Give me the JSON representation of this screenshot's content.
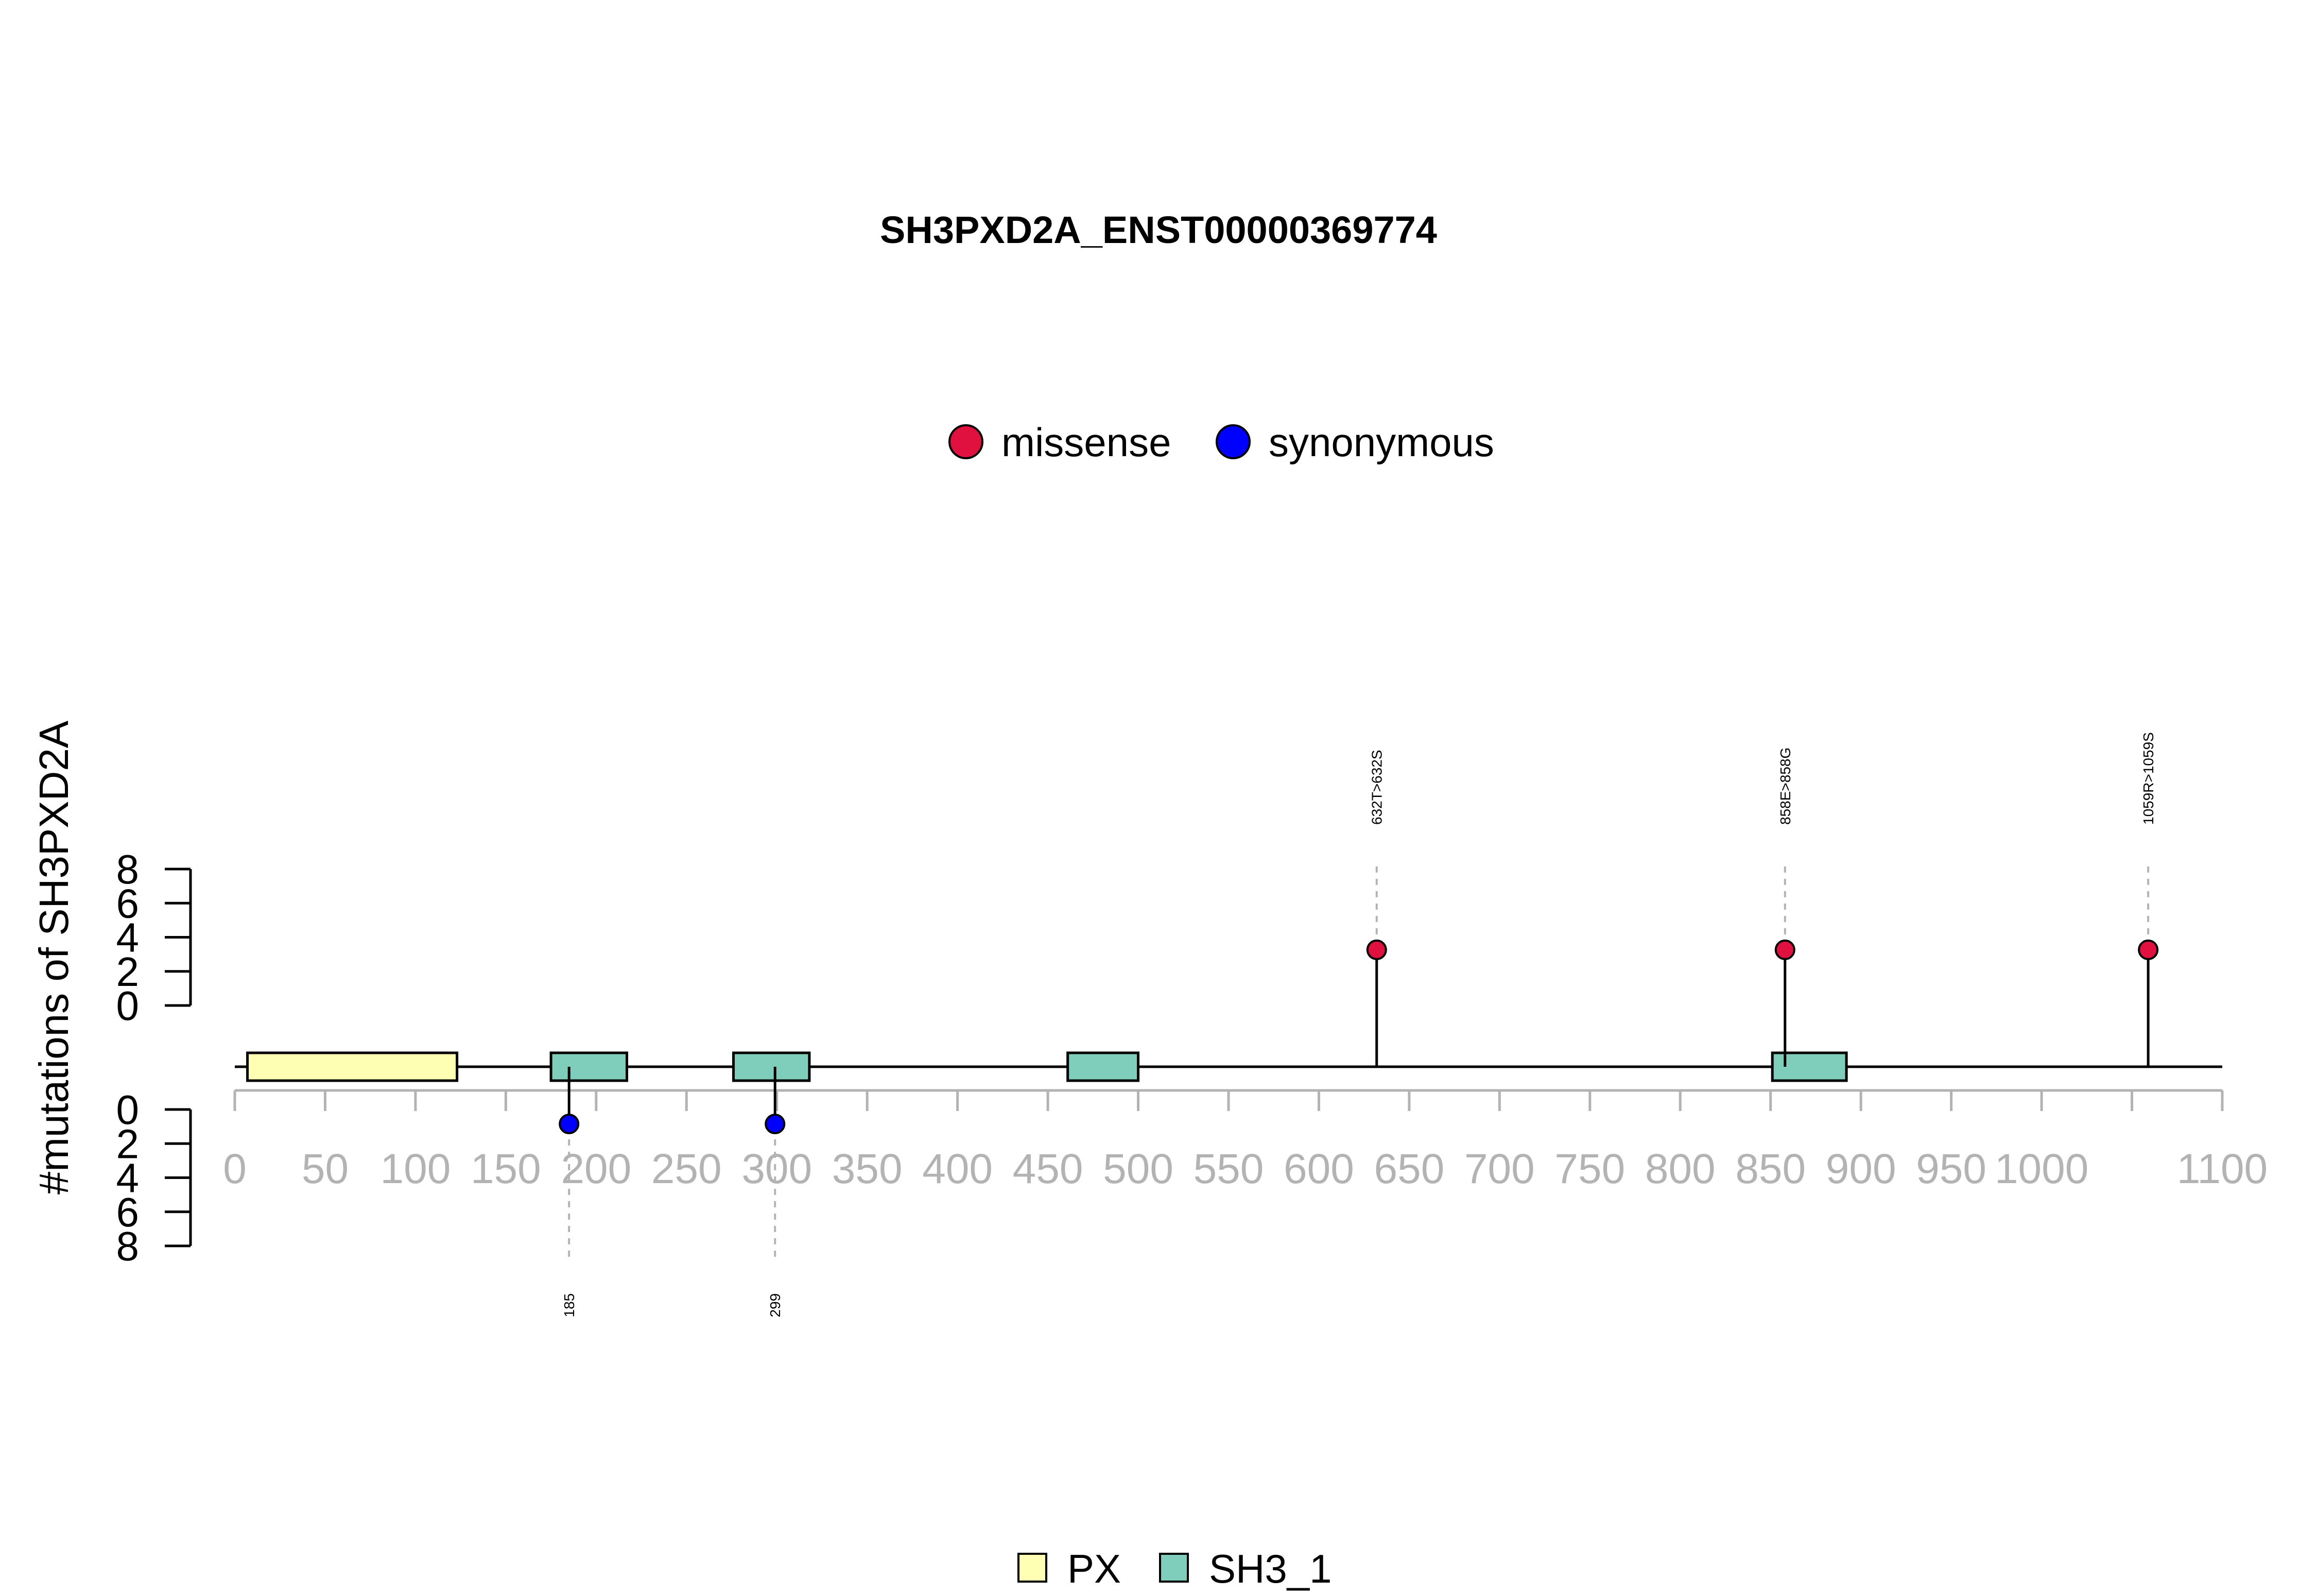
{
  "chart_data": {
    "type": "lollipop",
    "title": "SH3PXD2A_ENST00000369774",
    "ylabel": "#mutations of SH3PXD2A",
    "xlim": [
      0,
      1100
    ],
    "x_ticks": [
      0,
      50,
      100,
      150,
      200,
      250,
      300,
      350,
      400,
      450,
      500,
      550,
      600,
      650,
      700,
      750,
      800,
      850,
      900,
      950,
      1000,
      1100
    ],
    "x_tick_marks": [
      0,
      50,
      100,
      150,
      200,
      250,
      300,
      350,
      400,
      450,
      500,
      550,
      600,
      650,
      700,
      750,
      800,
      850,
      900,
      950,
      1000,
      1050,
      1100
    ],
    "y_ticks": [
      0,
      2,
      4,
      6,
      8
    ],
    "mutation_legend": [
      {
        "name": "missense",
        "color": "#e0103f"
      },
      {
        "name": "synonymous",
        "color": "#0000ff"
      }
    ],
    "domain_legend": [
      {
        "name": "PX",
        "color": "#ffffb3"
      },
      {
        "name": "SH3_1",
        "color": "#7fcdbb"
      }
    ],
    "domains": [
      {
        "name": "PX",
        "start": 7,
        "end": 123
      },
      {
        "name": "SH3_1",
        "start": 175,
        "end": 217
      },
      {
        "name": "SH3_1",
        "start": 276,
        "end": 318
      },
      {
        "name": "SH3_1",
        "start": 461,
        "end": 500
      },
      {
        "name": "SH3_1",
        "start": 851,
        "end": 892
      }
    ],
    "mutations": [
      {
        "position": 632,
        "count": 1,
        "type": "missense",
        "label": "632T>632S",
        "side": "top"
      },
      {
        "position": 858,
        "count": 1,
        "type": "missense",
        "label": "858E>858G",
        "side": "top"
      },
      {
        "position": 1059,
        "count": 1,
        "type": "missense",
        "label": "1059R>1059S",
        "side": "top"
      },
      {
        "position": 185,
        "count": 1,
        "type": "synonymous",
        "label": "185",
        "side": "bottom"
      },
      {
        "position": 299,
        "count": 1,
        "type": "synonymous",
        "label": "299",
        "side": "bottom"
      }
    ]
  }
}
